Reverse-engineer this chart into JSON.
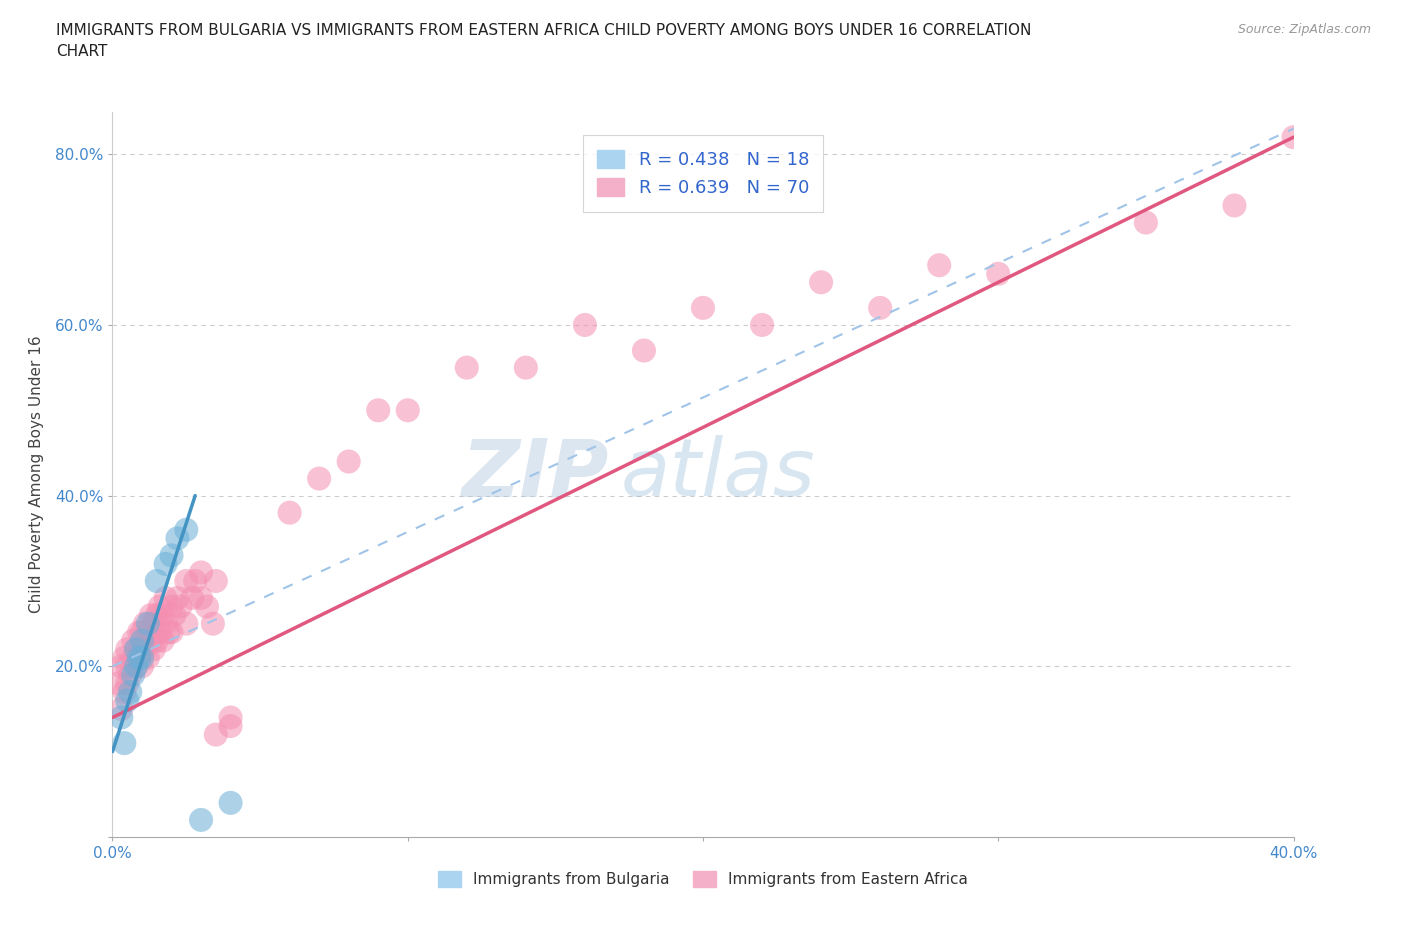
{
  "title": "IMMIGRANTS FROM BULGARIA VS IMMIGRANTS FROM EASTERN AFRICA CHILD POVERTY AMONG BOYS UNDER 16 CORRELATION\nCHART",
  "source_text": "Source: ZipAtlas.com",
  "ylabel": "Child Poverty Among Boys Under 16",
  "xlim": [
    0.0,
    0.4
  ],
  "ylim": [
    0.0,
    0.85
  ],
  "xticks": [
    0.0,
    0.1,
    0.2,
    0.3,
    0.4
  ],
  "xticklabels": [
    "0.0%",
    "",
    "",
    "",
    "40.0%"
  ],
  "yticks": [
    0.0,
    0.2,
    0.4,
    0.6,
    0.8
  ],
  "yticklabels": [
    "",
    "20.0%",
    "40.0%",
    "60.0%",
    "80.0%"
  ],
  "bg_color": "#ffffff",
  "grid_color": "#cccccc",
  "watermark_zip": "ZIP",
  "watermark_atlas": "atlas",
  "legend_R1": "R = 0.438",
  "legend_N1": "N = 18",
  "legend_R2": "R = 0.639",
  "legend_N2": "N = 70",
  "color_bulgaria": "#6baed6",
  "color_eastern_africa": "#f48fb1",
  "trend_bulgaria": "#4393c3",
  "trend_eastern_africa": "#e05880",
  "trend_dashed": "#a0c4e8",
  "label_bulgaria": "Immigrants from Bulgaria",
  "label_eastern_africa": "Immigrants from Eastern Africa",
  "bulgaria_x": [
    0.003,
    0.004,
    0.005,
    0.006,
    0.007,
    0.008,
    0.008,
    0.009,
    0.01,
    0.01,
    0.012,
    0.015,
    0.018,
    0.02,
    0.022,
    0.025,
    0.03,
    0.04
  ],
  "bulgaria_y": [
    0.14,
    0.11,
    0.16,
    0.17,
    0.19,
    0.2,
    0.22,
    0.21,
    0.21,
    0.23,
    0.25,
    0.3,
    0.32,
    0.33,
    0.35,
    0.36,
    0.02,
    0.04
  ],
  "eastern_africa_x": [
    0.002,
    0.003,
    0.003,
    0.004,
    0.004,
    0.005,
    0.005,
    0.005,
    0.006,
    0.007,
    0.007,
    0.008,
    0.008,
    0.009,
    0.009,
    0.01,
    0.01,
    0.01,
    0.011,
    0.011,
    0.012,
    0.012,
    0.013,
    0.013,
    0.014,
    0.014,
    0.015,
    0.015,
    0.016,
    0.016,
    0.017,
    0.017,
    0.018,
    0.018,
    0.019,
    0.02,
    0.02,
    0.021,
    0.022,
    0.023,
    0.025,
    0.025,
    0.027,
    0.028,
    0.03,
    0.03,
    0.032,
    0.034,
    0.035,
    0.035,
    0.04,
    0.04,
    0.06,
    0.07,
    0.08,
    0.09,
    0.1,
    0.12,
    0.14,
    0.16,
    0.18,
    0.2,
    0.22,
    0.24,
    0.26,
    0.28,
    0.3,
    0.35,
    0.38,
    0.4
  ],
  "eastern_africa_y": [
    0.18,
    0.15,
    0.2,
    0.17,
    0.21,
    0.18,
    0.2,
    0.22,
    0.19,
    0.21,
    0.23,
    0.2,
    0.22,
    0.21,
    0.24,
    0.2,
    0.22,
    0.24,
    0.22,
    0.25,
    0.21,
    0.24,
    0.23,
    0.26,
    0.22,
    0.25,
    0.23,
    0.26,
    0.24,
    0.27,
    0.23,
    0.26,
    0.25,
    0.28,
    0.24,
    0.24,
    0.27,
    0.26,
    0.28,
    0.27,
    0.25,
    0.3,
    0.28,
    0.3,
    0.28,
    0.31,
    0.27,
    0.25,
    0.3,
    0.12,
    0.13,
    0.14,
    0.38,
    0.42,
    0.44,
    0.5,
    0.5,
    0.55,
    0.55,
    0.6,
    0.57,
    0.62,
    0.6,
    0.65,
    0.62,
    0.67,
    0.66,
    0.72,
    0.74,
    0.82
  ]
}
